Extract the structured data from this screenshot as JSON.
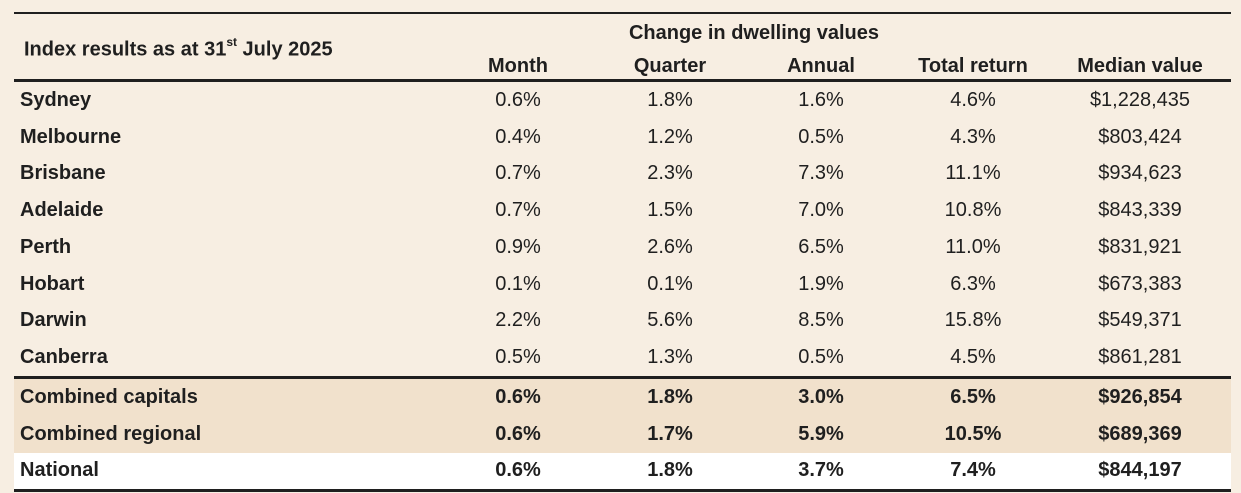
{
  "table": {
    "title_main": "Index results as at 31",
    "title_sup": "st",
    "title_tail": " July 2025",
    "group_header": "Change in dwelling values",
    "columns": [
      "Month",
      "Quarter",
      "Annual",
      "Total return",
      "Median value"
    ],
    "city_rows": [
      {
        "name": "Sydney",
        "month": "0.6%",
        "quarter": "1.8%",
        "annual": "1.6%",
        "total": "4.6%",
        "median": "$1,228,435"
      },
      {
        "name": "Melbourne",
        "month": "0.4%",
        "quarter": "1.2%",
        "annual": "0.5%",
        "total": "4.3%",
        "median": "$803,424"
      },
      {
        "name": "Brisbane",
        "month": "0.7%",
        "quarter": "2.3%",
        "annual": "7.3%",
        "total": "11.1%",
        "median": "$934,623"
      },
      {
        "name": "Adelaide",
        "month": "0.7%",
        "quarter": "1.5%",
        "annual": "7.0%",
        "total": "10.8%",
        "median": "$843,339"
      },
      {
        "name": "Perth",
        "month": "0.9%",
        "quarter": "2.6%",
        "annual": "6.5%",
        "total": "11.0%",
        "median": "$831,921"
      },
      {
        "name": "Hobart",
        "month": "0.1%",
        "quarter": "0.1%",
        "annual": "1.9%",
        "total": "6.3%",
        "median": "$673,383"
      },
      {
        "name": "Darwin",
        "month": "2.2%",
        "quarter": "5.6%",
        "annual": "8.5%",
        "total": "15.8%",
        "median": "$549,371"
      },
      {
        "name": "Canberra",
        "month": "0.5%",
        "quarter": "1.3%",
        "annual": "0.5%",
        "total": "4.5%",
        "median": "$861,281"
      }
    ],
    "summary_rows": [
      {
        "name": "Combined capitals",
        "month": "0.6%",
        "quarter": "1.8%",
        "annual": "3.0%",
        "total": "6.5%",
        "median": "$926,854"
      },
      {
        "name": "Combined regional",
        "month": "0.6%",
        "quarter": "1.7%",
        "annual": "5.9%",
        "total": "10.5%",
        "median": "$689,369"
      }
    ],
    "national_row": {
      "name": "National",
      "month": "0.6%",
      "quarter": "1.8%",
      "annual": "3.7%",
      "total": "7.4%",
      "median": "$844,197"
    }
  },
  "colors": {
    "background": "#f7eee2",
    "summary_band": "#f1e1cc",
    "national_band": "#ffffff",
    "rule": "#1f1f1f"
  }
}
